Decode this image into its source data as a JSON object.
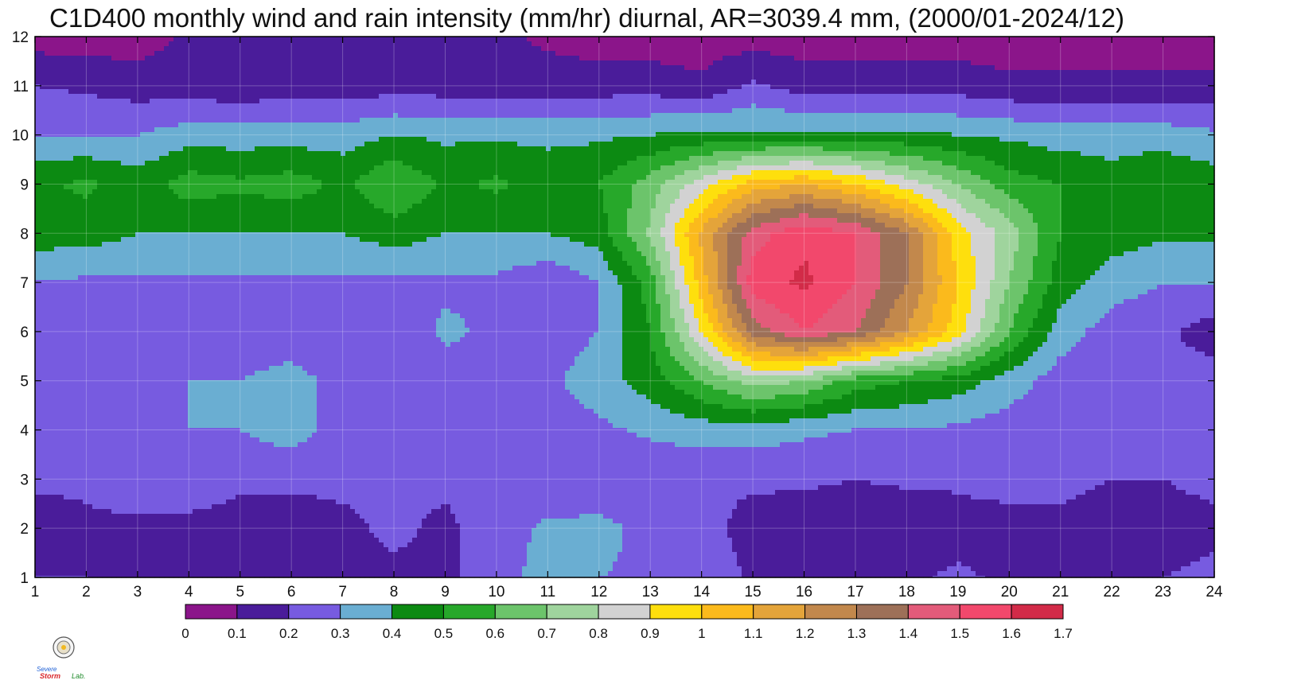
{
  "chart_data": {
    "type": "heatmap",
    "title": "C1D400 monthly wind and rain intensity (mm/hr) diurnal, AR=3039.4 mm, (2000/01-2024/12)",
    "x_ticks": [
      1,
      2,
      3,
      4,
      5,
      6,
      7,
      8,
      9,
      10,
      11,
      12,
      13,
      14,
      15,
      16,
      17,
      18,
      19,
      20,
      21,
      22,
      23,
      24
    ],
    "y_ticks": [
      1,
      2,
      3,
      4,
      5,
      6,
      7,
      8,
      9,
      10,
      11,
      12
    ],
    "xlim": [
      1,
      24
    ],
    "ylim": [
      1,
      12
    ],
    "grid": true,
    "colorbar": {
      "levels": [
        0,
        0.1,
        0.2,
        0.3,
        0.4,
        0.5,
        0.6,
        0.7,
        0.8,
        0.9,
        1,
        1.1,
        1.2,
        1.3,
        1.4,
        1.5,
        1.6,
        1.7
      ],
      "labels": [
        "0",
        "0.1",
        "0.2",
        "0.3",
        "0.4",
        "0.5",
        "0.6",
        "0.7",
        "0.8",
        "0.9",
        "1",
        "1.1",
        "1.2",
        "1.3",
        "1.4",
        "1.5",
        "1.6",
        "1.7"
      ],
      "colors": [
        "#8b158a",
        "#4a1c9a",
        "#775be0",
        "#6aaed2",
        "#0c8a12",
        "#27a82a",
        "#6cc46b",
        "#9fd49d",
        "#d2d2d2",
        "#fedf0d",
        "#fbba1c",
        "#e4a43a",
        "#c2884c",
        "#9d7058",
        "#e35b7a",
        "#f2486c",
        "#d22b48"
      ],
      "contour_line_color": "#f5a623"
    },
    "values_note_free": true,
    "values": [
      [
        0.2,
        0.2,
        0.15,
        0.12,
        0.12,
        0.13,
        0.15,
        0.18,
        0.18,
        0.25,
        0.35,
        0.3,
        0.29,
        0.28,
        0.18,
        0.16,
        0.15,
        0.18,
        0.22,
        0.18,
        0.18,
        0.15,
        0.2,
        0.25
      ],
      [
        0.15,
        0.18,
        0.18,
        0.15,
        0.15,
        0.15,
        0.18,
        0.22,
        0.18,
        0.25,
        0.32,
        0.32,
        0.28,
        0.25,
        0.15,
        0.14,
        0.12,
        0.12,
        0.15,
        0.15,
        0.15,
        0.12,
        0.12,
        0.15
      ],
      [
        0.22,
        0.22,
        0.26,
        0.3,
        0.22,
        0.22,
        0.22,
        0.22,
        0.22,
        0.22,
        0.22,
        0.25,
        0.22,
        0.22,
        0.22,
        0.22,
        0.2,
        0.22,
        0.22,
        0.25,
        0.25,
        0.2,
        0.2,
        0.25
      ],
      [
        0.28,
        0.25,
        0.3,
        0.3,
        0.3,
        0.35,
        0.25,
        0.25,
        0.25,
        0.25,
        0.25,
        0.28,
        0.32,
        0.35,
        0.35,
        0.32,
        0.3,
        0.3,
        0.28,
        0.25,
        0.25,
        0.22,
        0.22,
        0.22
      ],
      [
        0.25,
        0.22,
        0.25,
        0.3,
        0.3,
        0.35,
        0.25,
        0.25,
        0.25,
        0.25,
        0.28,
        0.35,
        0.45,
        0.6,
        0.75,
        0.7,
        0.55,
        0.5,
        0.45,
        0.35,
        0.25,
        0.22,
        0.22,
        0.25
      ],
      [
        0.22,
        0.22,
        0.22,
        0.22,
        0.22,
        0.22,
        0.22,
        0.22,
        0.32,
        0.28,
        0.25,
        0.3,
        0.5,
        0.9,
        1.35,
        1.5,
        1.4,
        1.2,
        0.95,
        0.6,
        0.35,
        0.25,
        0.22,
        0.15
      ],
      [
        0.3,
        0.28,
        0.28,
        0.28,
        0.28,
        0.28,
        0.28,
        0.28,
        0.28,
        0.28,
        0.22,
        0.3,
        0.55,
        1.05,
        1.55,
        1.62,
        1.5,
        1.3,
        1.0,
        0.7,
        0.45,
        0.35,
        0.3,
        0.3
      ],
      [
        0.45,
        0.45,
        0.4,
        0.4,
        0.4,
        0.4,
        0.4,
        0.45,
        0.4,
        0.4,
        0.4,
        0.45,
        0.72,
        1.12,
        1.45,
        1.58,
        1.5,
        1.3,
        0.95,
        0.75,
        0.5,
        0.45,
        0.42,
        0.42
      ],
      [
        0.48,
        0.52,
        0.45,
        0.55,
        0.52,
        0.55,
        0.48,
        0.6,
        0.48,
        0.52,
        0.45,
        0.5,
        0.65,
        0.85,
        1.05,
        1.1,
        1.0,
        0.85,
        0.7,
        0.55,
        0.5,
        0.45,
        0.5,
        0.45
      ],
      [
        0.3,
        0.3,
        0.3,
        0.35,
        0.35,
        0.35,
        0.35,
        0.4,
        0.38,
        0.38,
        0.38,
        0.38,
        0.4,
        0.42,
        0.42,
        0.42,
        0.42,
        0.42,
        0.4,
        0.38,
        0.35,
        0.35,
        0.35,
        0.32
      ],
      [
        0.2,
        0.18,
        0.15,
        0.15,
        0.12,
        0.15,
        0.15,
        0.15,
        0.15,
        0.15,
        0.15,
        0.15,
        0.15,
        0.12,
        0.22,
        0.15,
        0.15,
        0.15,
        0.15,
        0.12,
        0.12,
        0.12,
        0.12,
        0.12
      ],
      [
        0.05,
        0.05,
        0.05,
        0.12,
        0.12,
        0.12,
        0.12,
        0.12,
        0.12,
        0.12,
        0.08,
        0.05,
        0.05,
        0.05,
        0.05,
        0.05,
        0.05,
        0.05,
        0.05,
        0.05,
        0.05,
        0.05,
        0.05,
        0.05
      ]
    ]
  },
  "logo": {
    "text_severe": "Severe",
    "text_storm": "Storm",
    "text_lab": "Lab."
  }
}
